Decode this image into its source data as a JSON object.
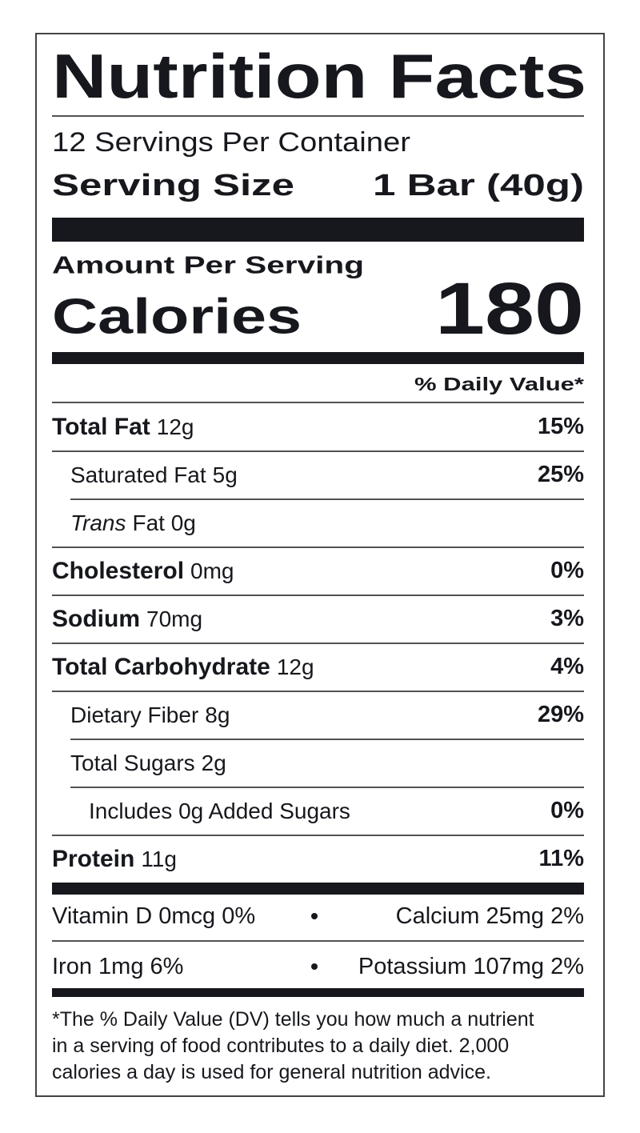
{
  "header": {
    "title": "Nutrition Facts",
    "servings": "12 Servings Per Container",
    "serving_size_label": "Serving Size",
    "serving_size_value": "1 Bar (40g)"
  },
  "calories": {
    "amount_per_serving": "Amount Per Serving",
    "label": "Calories",
    "value": "180"
  },
  "daily_value_header": "% Daily Value*",
  "rows": [
    {
      "name": "Total Fat",
      "amount": "12g",
      "dv": "15%",
      "style": "bold",
      "indent": 0
    },
    {
      "name": "Saturated Fat",
      "amount": "5g",
      "dv": "25%",
      "style": "plain",
      "indent": 1
    },
    {
      "name": "Trans",
      "amount": "Fat 0g",
      "style": "italic",
      "indent": 1
    },
    {
      "name": "Cholesterol",
      "amount": "0mg",
      "dv": "0%",
      "style": "bold",
      "indent": 0
    },
    {
      "name": "Sodium",
      "amount": "70mg",
      "dv": "3%",
      "style": "bold",
      "indent": 0
    },
    {
      "name": "Total Carbohydrate",
      "amount": "12g",
      "dv": "4%",
      "style": "bold",
      "indent": 0
    },
    {
      "name": "Dietary Fiber",
      "amount": "8g",
      "dv": "29%",
      "style": "plain",
      "indent": 1
    },
    {
      "name": "Total Sugars",
      "amount": "2g",
      "style": "plain",
      "indent": 1
    },
    {
      "name": "Includes 0g Added Sugars",
      "dv": "0%",
      "style": "plain",
      "indent": 2
    },
    {
      "name": "Protein",
      "amount": "11g",
      "dv": "11%",
      "style": "bold",
      "indent": 0
    }
  ],
  "micronutrients": [
    [
      "Vitamin D 0mcg 0%",
      "Calcium 25mg 2%"
    ],
    [
      "Iron 1mg 6%",
      "Potassium 107mg 2%"
    ]
  ],
  "footnote": [
    "*The % Daily Value (DV) tells you how much a nutrient",
    "in a serving of food contributes to a daily diet. 2,000",
    "calories a day is used for general nutrition advice."
  ]
}
